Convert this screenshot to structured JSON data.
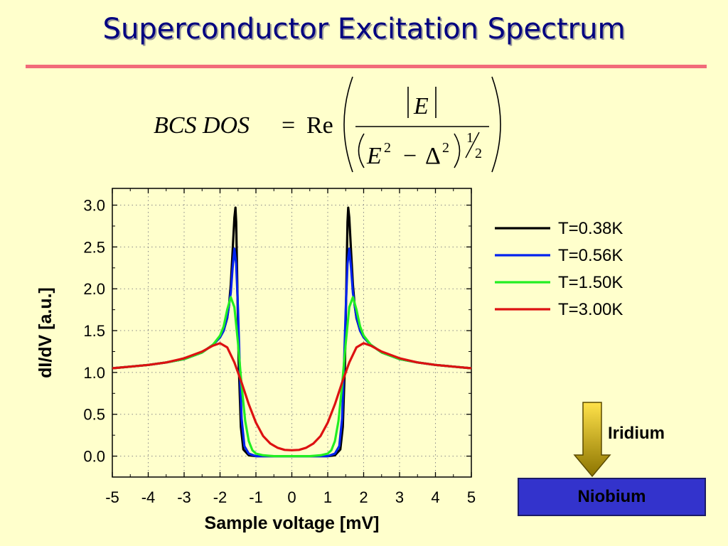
{
  "slide": {
    "title": "Superconductor Excitation Spectrum"
  },
  "formula": {
    "lhs": "BCS DOS",
    "equals": "=",
    "re": "Re",
    "numerator": "E",
    "E": "E",
    "minus": "−",
    "delta": "Δ",
    "sq": "2",
    "exp_num": "1",
    "exp_den": "2"
  },
  "diagram": {
    "arrow_label": "Iridium",
    "substrate_label": "Niobium",
    "colors": {
      "arrow_top": "#FFE24A",
      "arrow_bottom": "#8C7400",
      "substrate": "#3333CC"
    }
  },
  "chart_data": {
    "type": "line",
    "xlabel": "Sample voltage [mV]",
    "ylabel": "dI/dV [a.u.]",
    "xlim": [
      -5,
      5
    ],
    "ylim": [
      -0.25,
      3.2
    ],
    "x_ticks": [
      -5,
      -4,
      -3,
      -2,
      -1,
      0,
      1,
      2,
      3,
      4,
      5
    ],
    "x_tick_labels": [
      "-5",
      "-4",
      "-3",
      "-2",
      "-1",
      "0",
      "1",
      "2",
      "3",
      "4",
      "5"
    ],
    "y_ticks": [
      0,
      0.5,
      1,
      1.5,
      2,
      2.5,
      3
    ],
    "y_tick_labels": [
      "0.0",
      "0.5",
      "1.0",
      "1.5",
      "2.0",
      "2.5",
      "3.0"
    ],
    "grid": true,
    "legend_position": "right",
    "series": [
      {
        "name": "T=0.38K",
        "color": "#000000",
        "x": [
          -5,
          -4.5,
          -4,
          -3.5,
          -3,
          -2.5,
          -2.2,
          -2,
          -1.9,
          -1.8,
          -1.75,
          -1.7,
          -1.65,
          -1.6,
          -1.57,
          -1.55,
          -1.52,
          -1.48,
          -1.42,
          -1.35,
          -1.2,
          -1,
          -0.5,
          0,
          0.5,
          1,
          1.2,
          1.35,
          1.42,
          1.48,
          1.52,
          1.55,
          1.57,
          1.6,
          1.65,
          1.7,
          1.75,
          1.8,
          1.9,
          2,
          2.2,
          2.5,
          3,
          3.5,
          4,
          4.5,
          5
        ],
        "y": [
          1.05,
          1.07,
          1.09,
          1.12,
          1.16,
          1.24,
          1.33,
          1.42,
          1.5,
          1.65,
          1.8,
          2.05,
          2.45,
          2.85,
          2.97,
          2.8,
          2.1,
          1.1,
          0.35,
          0.08,
          0.01,
          0,
          0,
          0,
          0,
          0,
          0.01,
          0.08,
          0.35,
          1.1,
          2.1,
          2.8,
          2.97,
          2.85,
          2.45,
          2.05,
          1.8,
          1.65,
          1.5,
          1.42,
          1.33,
          1.24,
          1.16,
          1.12,
          1.09,
          1.07,
          1.05
        ]
      },
      {
        "name": "T=0.56K",
        "color": "#0022EE",
        "x": [
          -5,
          -4.5,
          -4,
          -3.5,
          -3,
          -2.5,
          -2.2,
          -2,
          -1.9,
          -1.8,
          -1.7,
          -1.65,
          -1.6,
          -1.55,
          -1.5,
          -1.45,
          -1.4,
          -1.32,
          -1.2,
          -1,
          -0.5,
          0,
          0.5,
          1,
          1.2,
          1.32,
          1.4,
          1.45,
          1.5,
          1.55,
          1.6,
          1.65,
          1.7,
          1.8,
          1.9,
          2,
          2.2,
          2.5,
          3,
          3.5,
          4,
          4.5,
          5
        ],
        "y": [
          1.05,
          1.07,
          1.09,
          1.12,
          1.16,
          1.24,
          1.33,
          1.42,
          1.5,
          1.66,
          1.95,
          2.25,
          2.48,
          2.3,
          1.75,
          1.05,
          0.45,
          0.12,
          0.03,
          0,
          0,
          0,
          0,
          0,
          0.03,
          0.12,
          0.45,
          1.05,
          1.75,
          2.3,
          2.48,
          2.25,
          1.95,
          1.66,
          1.5,
          1.42,
          1.33,
          1.24,
          1.16,
          1.12,
          1.09,
          1.07,
          1.05
        ]
      },
      {
        "name": "T=1.50K",
        "color": "#22EE22",
        "x": [
          -5,
          -4.5,
          -4,
          -3.5,
          -3,
          -2.5,
          -2.2,
          -2,
          -1.9,
          -1.8,
          -1.7,
          -1.6,
          -1.5,
          -1.4,
          -1.3,
          -1.2,
          -1.1,
          -1,
          -0.8,
          -0.5,
          0,
          0.5,
          0.8,
          1,
          1.1,
          1.2,
          1.3,
          1.4,
          1.5,
          1.6,
          1.7,
          1.8,
          1.9,
          2,
          2.2,
          2.5,
          3,
          3.5,
          4,
          4.5,
          5
        ],
        "y": [
          1.05,
          1.07,
          1.09,
          1.12,
          1.16,
          1.24,
          1.33,
          1.44,
          1.55,
          1.75,
          1.9,
          1.78,
          1.35,
          0.85,
          0.42,
          0.18,
          0.07,
          0.03,
          0.01,
          0,
          0,
          0,
          0.01,
          0.03,
          0.07,
          0.18,
          0.42,
          0.85,
          1.35,
          1.78,
          1.9,
          1.75,
          1.55,
          1.44,
          1.33,
          1.24,
          1.16,
          1.12,
          1.09,
          1.07,
          1.05
        ]
      },
      {
        "name": "T=3.00K",
        "color": "#DD1111",
        "x": [
          -5,
          -4.5,
          -4,
          -3.5,
          -3,
          -2.5,
          -2.2,
          -2,
          -1.8,
          -1.6,
          -1.4,
          -1.2,
          -1,
          -0.8,
          -0.6,
          -0.4,
          -0.2,
          0,
          0.2,
          0.4,
          0.6,
          0.8,
          1,
          1.2,
          1.4,
          1.6,
          1.8,
          2,
          2.2,
          2.5,
          3,
          3.5,
          4,
          4.5,
          5
        ],
        "y": [
          1.05,
          1.07,
          1.09,
          1.12,
          1.17,
          1.25,
          1.32,
          1.35,
          1.3,
          1.12,
          0.88,
          0.62,
          0.4,
          0.24,
          0.15,
          0.1,
          0.075,
          0.07,
          0.075,
          0.1,
          0.15,
          0.24,
          0.4,
          0.62,
          0.88,
          1.12,
          1.3,
          1.35,
          1.32,
          1.25,
          1.17,
          1.12,
          1.09,
          1.07,
          1.05
        ]
      }
    ]
  }
}
